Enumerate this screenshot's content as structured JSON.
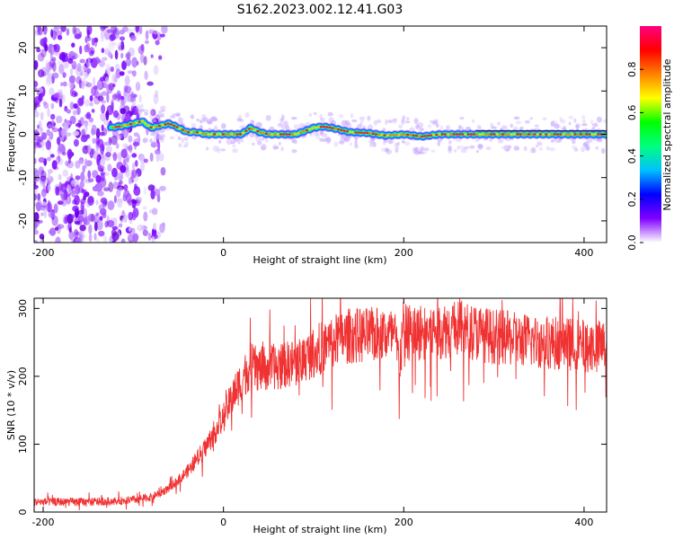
{
  "figure_title": "S162.2023.002.12.41.G03",
  "chart_data": [
    {
      "type": "heatmap",
      "xlabel": "Height of straight line (km)",
      "ylabel": "Frequency (Hz)",
      "xlim": [
        -210,
        425
      ],
      "ylim": [
        -25,
        25
      ],
      "xticks": [
        -200,
        0,
        200,
        400
      ],
      "yticks": [
        -20,
        -10,
        0,
        10,
        20
      ],
      "colorbar": {
        "label": "Normalized spectral amplitude",
        "range": [
          0,
          1
        ],
        "ticks": [
          0.0,
          0.2,
          0.4,
          0.6,
          0.8
        ],
        "colormap": [
          "#ffffff",
          "#8000ff",
          "#0000ff",
          "#00c0ff",
          "#00ff80",
          "#00ff00",
          "#ffff00",
          "#ff8000",
          "#ff0000",
          "#ff0080"
        ]
      },
      "noise_region_x": [
        -210,
        -95
      ],
      "ridge": {
        "x": [
          -125,
          -110,
          -100,
          -90,
          -80,
          -70,
          -60,
          -50,
          -40,
          -30,
          -20,
          0,
          20,
          30,
          40,
          50,
          60,
          80,
          100,
          110,
          120,
          130,
          140,
          160,
          180,
          200,
          220,
          240,
          260,
          300,
          350,
          400,
          425
        ],
        "frequency": [
          1.5,
          2,
          2.5,
          3,
          1.5,
          2,
          2.5,
          1.5,
          0.5,
          0.5,
          0,
          0,
          0,
          1.5,
          0.5,
          0,
          0,
          0,
          1.5,
          1.8,
          1.5,
          1,
          0.5,
          0.3,
          -0.3,
          0,
          -0.5,
          0,
          0,
          0,
          0,
          0,
          0
        ]
      }
    },
    {
      "type": "line",
      "xlabel": "Height of straight line (km)",
      "ylabel": "SNR (10 * v/v)",
      "xlim": [
        -210,
        425
      ],
      "ylim": [
        0,
        315
      ],
      "xticks": [
        -200,
        0,
        200,
        400
      ],
      "yticks": [
        0,
        100,
        200,
        300
      ],
      "color": "#f03232",
      "series": [
        {
          "x": [
            -210,
            -180,
            -150,
            -120,
            -100,
            -80,
            -60,
            -40,
            -20,
            0,
            10,
            20,
            30,
            40,
            60,
            80,
            100,
            120,
            140,
            160,
            180,
            190,
            195,
            200,
            220,
            240,
            260,
            280,
            300,
            320,
            340,
            360,
            380,
            400,
            425
          ],
          "values": [
            15,
            15,
            15,
            16,
            18,
            22,
            35,
            60,
            95,
            140,
            170,
            195,
            215,
            210,
            215,
            220,
            235,
            250,
            260,
            260,
            262,
            258,
            220,
            265,
            265,
            268,
            270,
            265,
            258,
            255,
            252,
            250,
            248,
            245,
            245
          ]
        }
      ]
    }
  ]
}
